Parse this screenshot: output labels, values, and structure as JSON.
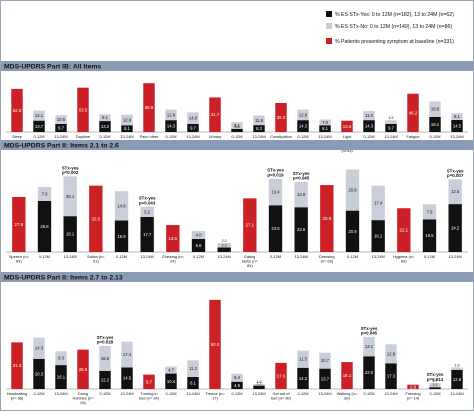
{
  "legend": {
    "items": [
      {
        "label": "% ES STx-Yes: 0 to 12M (n=182), 13 to 24M (n=62)",
        "color": "#111111"
      },
      {
        "label": "% ES STx-No: 0 to 12M (n=149), 13 to 24M (n=86)",
        "color": "#c9ced8"
      },
      {
        "label": "% Patients presenting symptom at baseline (n=331)",
        "color": "#cc2027"
      }
    ]
  },
  "colors": {
    "header_bg": "#8a9bb3",
    "baseline": "#cc2027",
    "stx_yes": "#111111",
    "stx_no": "#c9ced8"
  },
  "chart_data": [
    {
      "type": "bar",
      "title": "MDS-UPDRS Part IB: All Items",
      "ylim": [
        0,
        70
      ],
      "series_names": [
        "% Patients presenting symptom at baseline (n=331)",
        "% ES STx-Yes",
        "% ES STx-No"
      ],
      "groups": [
        {
          "category": "Sleep problems (n=172)",
          "baseline": 52.0,
          "timepoints": [
            {
              "label": "0-12M",
              "yes": 13.7,
              "no": 12.1
            },
            {
              "label": "13-24M",
              "yes": 9.7,
              "no": 10.5
            }
          ]
        },
        {
          "category": "Daytime sleepiness (n=42)",
          "baseline": 53.5,
          "timepoints": [
            {
              "label": "0-12M",
              "yes": 13.2,
              "no": 8.1
            },
            {
              "label": "13-24M",
              "yes": 8.1,
              "no": 12.8
            }
          ]
        },
        {
          "category": "Pain/ other sensations (n=48)",
          "baseline": 58.9,
          "timepoints": [
            {
              "label": "0-12M",
              "yes": 14.3,
              "no": 12.8
            },
            {
              "label": "13-24M",
              "yes": 9.7,
              "no": 14.0
            }
          ]
        },
        {
          "category": "Urinary problems (n=13)",
          "baseline": 41.7,
          "timepoints": [
            {
              "label": "0-12M",
              "yes": 3.8,
              "no": 8.1
            },
            {
              "label": "13-24M",
              "yes": 8.3,
              "no": 11.6
            }
          ]
        },
        {
          "category": "Constipation (n=38)",
          "baseline": 35.0,
          "timepoints": [
            {
              "label": "0-12M",
              "yes": 14.3,
              "no": 12.8
            },
            {
              "label": "13-24M",
              "yes": 8.1,
              "no": 7.0
            }
          ]
        },
        {
          "category": "Light headedness on standing (n=43)",
          "baseline": 13.6,
          "timepoints": [
            {
              "label": "0-12M",
              "yes": 14.3,
              "no": 11.0
            },
            {
              "label": "13-24M",
              "yes": 9.7,
              "no": 4.5
            }
          ]
        },
        {
          "category": "Fatigue (n=41)",
          "baseline": 46.2,
          "timepoints": [
            {
              "label": "0-12M",
              "yes": 18.1,
              "no": 18.8
            },
            {
              "label": "13-24M",
              "yes": 14.5,
              "no": 8.1
            }
          ]
        }
      ]
    },
    {
      "type": "bar",
      "title": "MDS-UPDRS Part II: Items 2.1 to 2.6",
      "ylim": [
        0,
        50
      ],
      "groups": [
        {
          "category": "Speech (n= 69)",
          "baseline": 27.8,
          "timepoints": [
            {
              "label": "0-12M",
              "yes": 25.8,
              "no": 7.0
            },
            {
              "label": "13-24M",
              "yes": 18.1,
              "no": 20.1,
              "annotation": [
                "STx-yes",
                "p=0.002"
              ]
            }
          ]
        },
        {
          "category": "Saliva (n= 51)",
          "baseline": 33.5,
          "timepoints": [
            {
              "label": "0-12M",
              "yes": 15.9,
              "no": 14.8
            },
            {
              "label": "13-24M",
              "yes": 17.7,
              "no": 5.2,
              "annotation": [
                "STx-yes",
                "p=0.043"
              ]
            }
          ]
        },
        {
          "category": "Chewing (n= 24)",
          "baseline": 13.6,
          "timepoints": [
            {
              "label": "0-12M",
              "yes": 6.6,
              "no": 4.0
            },
            {
              "label": "13-24M",
              "yes": 2.3,
              "no": 2.2
            }
          ]
        },
        {
          "category": "Eating tasks (n= 83)",
          "baseline": 27.1,
          "timepoints": [
            {
              "label": "0-12M",
              "yes": 23.6,
              "no": 13.4,
              "annotation": [
                "STx-yes",
                "p=0.019"
              ]
            },
            {
              "label": "13-24M",
              "yes": 22.6,
              "no": 12.8,
              "annotation": [
                "STx-yes",
                "p=0.045"
              ]
            }
          ]
        },
        {
          "category": "Dressing (n= 69)",
          "baseline": 33.8,
          "timepoints": [
            {
              "label": "0-12M",
              "yes": 20.9,
              "no": 20.8
            },
            {
              "label": "13-24M",
              "yes": 16.1,
              "no": 17.4
            }
          ]
        },
        {
          "category": "Hygiene (n= 69)",
          "baseline": 22.1,
          "timepoints": [
            {
              "label": "0-12M",
              "yes": 16.5,
              "no": 7.6
            },
            {
              "label": "13-24M",
              "yes": 24.2,
              "no": 12.5,
              "annotation": [
                "STx-yes",
                "p=0.007"
              ]
            }
          ]
        }
      ]
    },
    {
      "type": "bar",
      "title": "MDS-UPDRS Part II: Items 2.7 to 2.13",
      "ylim": [
        0,
        70
      ],
      "groups": [
        {
          "category": "Handwriting (n= 58)",
          "baseline": 31.4,
          "timepoints": [
            {
              "label": "0-12M",
              "yes": 20.3,
              "no": 14.3
            },
            {
              "label": "13-24M",
              "yes": 16.1,
              "no": 9.3
            }
          ]
        },
        {
          "category": "Doing Hobbies (n= 26)",
          "baseline": 26.5,
          "timepoints": [
            {
              "label": "0-12M",
              "yes": 12.2,
              "no": 16.8,
              "annotation": [
                "STx-yes",
                "p=0.028"
              ]
            },
            {
              "label": "13-24M",
              "yes": 14.5,
              "no": 17.4
            }
          ]
        },
        {
          "category": "Turning in bed (n= 34)",
          "baseline": 9.7,
          "timepoints": [
            {
              "label": "0-12M",
              "yes": 10.4,
              "no": 4.7
            },
            {
              "label": "13-24M",
              "yes": 8.1,
              "no": 11.2
            }
          ]
        },
        {
          "category": "Tremor (n= 17)",
          "baseline": 60.0,
          "timepoints": [
            {
              "label": "0-12M",
              "yes": 4.9,
              "no": 5.4
            },
            {
              "label": "13-24M",
              "yes": 2.3,
              "no": 1.0
            }
          ]
        },
        {
          "category": "Get out of bed (n= 50)",
          "baseline": 17.6,
          "timepoints": [
            {
              "label": "0-12M",
              "yes": 14.3,
              "no": 11.5
            },
            {
              "label": "13-24M",
              "yes": 13.7,
              "no": 10.7
            }
          ]
        },
        {
          "category": "Walking (n= 60)",
          "baseline": 18.1,
          "timepoints": [
            {
              "label": "0-12M",
              "yes": 22.0,
              "no": 13.1,
              "annotation": [
                "STx-yes",
                "p=0.045"
              ]
            },
            {
              "label": "13-24M",
              "yes": 17.3,
              "no": 12.8
            }
          ]
        },
        {
          "category": "Freezing (n= 14)",
          "baseline": 2.9,
          "timepoints": [
            {
              "label": "0-12M",
              "yes": 1.2,
              "no": 2.7,
              "annotation": [
                "STx-yes",
                "p=0.014"
              ]
            },
            {
              "label": "13-24M",
              "yes": 12.9,
              "no": 1.6
            }
          ]
        }
      ]
    }
  ]
}
